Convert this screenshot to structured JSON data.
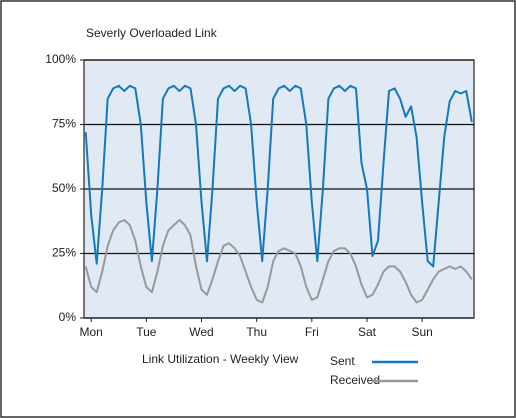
{
  "chart_data": {
    "type": "line",
    "title": "Severly Overloaded Link",
    "xlabel": "Link Utilization - Weekly View",
    "x": [
      -0.1,
      0,
      0.1,
      0.2,
      0.3,
      0.4,
      0.5,
      0.6,
      0.7,
      0.8,
      0.9,
      1,
      1.1,
      1.2,
      1.3,
      1.4,
      1.5,
      1.6,
      1.7,
      1.8,
      1.9,
      2,
      2.1,
      2.2,
      2.3,
      2.4,
      2.5,
      2.6,
      2.7,
      2.8,
      2.9,
      3,
      3.1,
      3.2,
      3.3,
      3.4,
      3.5,
      3.6,
      3.7,
      3.8,
      3.9,
      4,
      4.1,
      4.2,
      4.3,
      4.4,
      4.5,
      4.6,
      4.7,
      4.8,
      4.9,
      5,
      5.1,
      5.2,
      5.3,
      5.4,
      5.5,
      5.6,
      5.7,
      5.8,
      5.9,
      6,
      6.1,
      6.2,
      6.3,
      6.4,
      6.5,
      6.6,
      6.7,
      6.8,
      6.9
    ],
    "series": [
      {
        "name": "Sent",
        "color": "#1479bd",
        "values": [
          72,
          40,
          21,
          50,
          85,
          89,
          90,
          88,
          90,
          89,
          75,
          45,
          22,
          50,
          85,
          89,
          90,
          88,
          90,
          89,
          75,
          45,
          22,
          50,
          85,
          89,
          90,
          88,
          90,
          89,
          75,
          45,
          22,
          50,
          85,
          89,
          90,
          88,
          90,
          89,
          75,
          45,
          22,
          50,
          85,
          89,
          90,
          88,
          90,
          89,
          60,
          50,
          24,
          30,
          60,
          88,
          89,
          85,
          78,
          82,
          70,
          45,
          22,
          20,
          45,
          70,
          84,
          88,
          87,
          88,
          76
        ]
      },
      {
        "name": "Received",
        "color": "#999999",
        "values": [
          20,
          12,
          10,
          18,
          28,
          34,
          37,
          38,
          36,
          30,
          20,
          12,
          10,
          18,
          28,
          34,
          36,
          38,
          36,
          32,
          20,
          11,
          9,
          15,
          22,
          28,
          29,
          27,
          24,
          18,
          12,
          7,
          6,
          12,
          22,
          26,
          27,
          26,
          25,
          20,
          12,
          7,
          8,
          15,
          22,
          26,
          27,
          27,
          25,
          20,
          13,
          8,
          9,
          13,
          18,
          20,
          20,
          18,
          14,
          9,
          6,
          7,
          11,
          15,
          18,
          19,
          20,
          19,
          20,
          18,
          15
        ]
      }
    ],
    "xlim": [
      -0.13,
      6.94
    ],
    "xticks": [
      {
        "value": 0,
        "label": "Mon"
      },
      {
        "value": 1,
        "label": "Tue"
      },
      {
        "value": 2,
        "label": "Wed"
      },
      {
        "value": 3,
        "label": "Thu"
      },
      {
        "value": 4,
        "label": "Fri"
      },
      {
        "value": 5,
        "label": "Sat"
      },
      {
        "value": 6,
        "label": "Sun"
      }
    ],
    "ylim": [
      0,
      100
    ],
    "yticks": [
      {
        "value": 0,
        "label": "0%"
      },
      {
        "value": 25,
        "label": "25%"
      },
      {
        "value": 50,
        "label": "50%"
      },
      {
        "value": 75,
        "label": "75%"
      },
      {
        "value": 100,
        "label": "100%"
      }
    ],
    "grid": true
  }
}
